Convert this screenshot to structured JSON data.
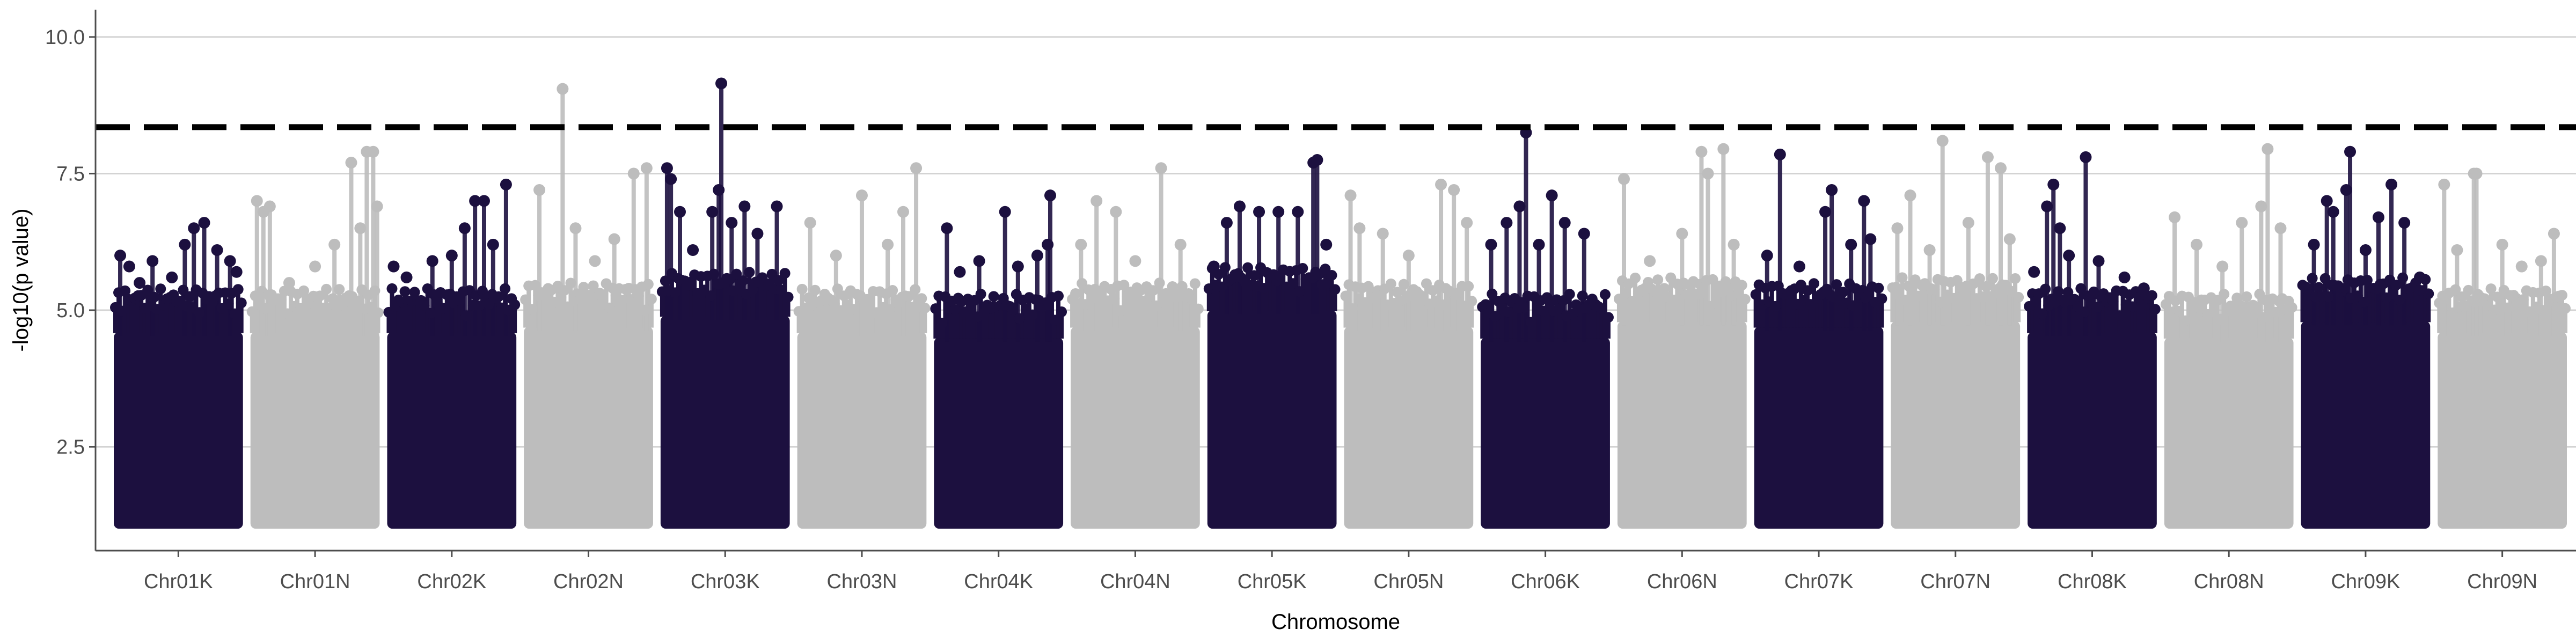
{
  "chart_data": {
    "type": "scatter",
    "title": "",
    "xlabel": "Chromosome",
    "ylabel": "-log10(p value)",
    "ylim": [
      0.6,
      10.5
    ],
    "yticks": [
      2.5,
      5.0,
      7.5,
      10.0
    ],
    "ytick_labels": [
      "2.5",
      "5.0",
      "7.5",
      "10.0"
    ],
    "grid": "horizontal major",
    "legend": "none",
    "threshold": 8.35,
    "threshold_style": "dashed",
    "colors": {
      "dark": "#1c103f",
      "light": "#bdbdbd",
      "threshold": "#000000",
      "grid": "#d3d3d3",
      "axis": "#4d4d4d"
    },
    "categories": [
      "Chr01K",
      "Chr01N",
      "Chr02K",
      "Chr02N",
      "Chr03K",
      "Chr03N",
      "Chr04K",
      "Chr04N",
      "Chr05K",
      "Chr05N",
      "Chr06K",
      "Chr06N",
      "Chr07K",
      "Chr07N",
      "Chr08K",
      "Chr08N",
      "Chr09K",
      "Chr09N"
    ],
    "series": [
      {
        "chromosome": "Chr01K",
        "color": "dark",
        "bulk_top": 4.6,
        "points": [
          [
            0.05,
            6.0
          ],
          [
            0.12,
            5.8
          ],
          [
            0.2,
            5.5
          ],
          [
            0.3,
            5.9
          ],
          [
            0.45,
            5.6
          ],
          [
            0.55,
            6.2
          ],
          [
            0.62,
            6.5
          ],
          [
            0.7,
            6.6
          ],
          [
            0.8,
            6.1
          ],
          [
            0.9,
            5.9
          ],
          [
            0.95,
            5.7
          ]
        ]
      },
      {
        "chromosome": "Chr01N",
        "color": "light",
        "bulk_top": 4.6,
        "points": [
          [
            0.05,
            7.0
          ],
          [
            0.1,
            6.8
          ],
          [
            0.15,
            6.9
          ],
          [
            0.3,
            5.5
          ],
          [
            0.5,
            5.8
          ],
          [
            0.65,
            6.2
          ],
          [
            0.78,
            7.7
          ],
          [
            0.85,
            6.5
          ],
          [
            0.9,
            7.9
          ],
          [
            0.95,
            7.9
          ],
          [
            0.98,
            6.9
          ]
        ]
      },
      {
        "chromosome": "Chr02K",
        "color": "dark",
        "bulk_top": 4.6,
        "points": [
          [
            0.05,
            5.8
          ],
          [
            0.15,
            5.6
          ],
          [
            0.35,
            5.9
          ],
          [
            0.5,
            6.0
          ],
          [
            0.6,
            6.5
          ],
          [
            0.68,
            7.0
          ],
          [
            0.75,
            7.0
          ],
          [
            0.82,
            6.2
          ],
          [
            0.92,
            7.3
          ]
        ]
      },
      {
        "chromosome": "Chr02N",
        "color": "light",
        "bulk_top": 4.7,
        "points": [
          [
            0.12,
            7.2
          ],
          [
            0.3,
            9.05
          ],
          [
            0.4,
            6.5
          ],
          [
            0.55,
            5.9
          ],
          [
            0.7,
            6.3
          ],
          [
            0.85,
            7.5
          ],
          [
            0.95,
            7.6
          ]
        ]
      },
      {
        "chromosome": "Chr03K",
        "color": "dark",
        "bulk_top": 4.9,
        "points": [
          [
            0.05,
            7.6
          ],
          [
            0.08,
            7.4
          ],
          [
            0.15,
            6.8
          ],
          [
            0.25,
            6.1
          ],
          [
            0.4,
            6.8
          ],
          [
            0.45,
            7.2
          ],
          [
            0.47,
            9.15
          ],
          [
            0.55,
            6.6
          ],
          [
            0.65,
            6.9
          ],
          [
            0.75,
            6.4
          ],
          [
            0.9,
            6.9
          ]
        ]
      },
      {
        "chromosome": "Chr03N",
        "color": "light",
        "bulk_top": 4.6,
        "points": [
          [
            0.1,
            6.6
          ],
          [
            0.3,
            6.0
          ],
          [
            0.5,
            7.1
          ],
          [
            0.7,
            6.2
          ],
          [
            0.82,
            6.8
          ],
          [
            0.92,
            7.6
          ]
        ]
      },
      {
        "chromosome": "Chr04K",
        "color": "dark",
        "bulk_top": 4.5,
        "points": [
          [
            0.1,
            6.5
          ],
          [
            0.2,
            5.7
          ],
          [
            0.35,
            5.9
          ],
          [
            0.55,
            6.8
          ],
          [
            0.65,
            5.8
          ],
          [
            0.8,
            6.0
          ],
          [
            0.88,
            6.2
          ],
          [
            0.9,
            7.1
          ]
        ]
      },
      {
        "chromosome": "Chr04N",
        "color": "light",
        "bulk_top": 4.7,
        "points": [
          [
            0.08,
            6.2
          ],
          [
            0.2,
            7.0
          ],
          [
            0.35,
            6.8
          ],
          [
            0.5,
            5.9
          ],
          [
            0.7,
            7.6
          ],
          [
            0.85,
            6.2
          ]
        ]
      },
      {
        "chromosome": "Chr05K",
        "color": "dark",
        "bulk_top": 5.0,
        "points": [
          [
            0.05,
            5.8
          ],
          [
            0.15,
            6.6
          ],
          [
            0.25,
            6.9
          ],
          [
            0.4,
            6.8
          ],
          [
            0.55,
            6.8
          ],
          [
            0.7,
            6.8
          ],
          [
            0.82,
            7.7
          ],
          [
            0.85,
            7.75
          ],
          [
            0.92,
            6.2
          ]
        ]
      },
      {
        "chromosome": "Chr05N",
        "color": "light",
        "bulk_top": 4.7,
        "points": [
          [
            0.05,
            7.1
          ],
          [
            0.12,
            6.5
          ],
          [
            0.3,
            6.4
          ],
          [
            0.5,
            6.0
          ],
          [
            0.75,
            7.3
          ],
          [
            0.85,
            7.2
          ],
          [
            0.95,
            6.6
          ]
        ]
      },
      {
        "chromosome": "Chr06K",
        "color": "dark",
        "bulk_top": 4.5,
        "points": [
          [
            0.08,
            6.2
          ],
          [
            0.2,
            6.6
          ],
          [
            0.3,
            6.9
          ],
          [
            0.35,
            8.25
          ],
          [
            0.45,
            6.2
          ],
          [
            0.55,
            7.1
          ],
          [
            0.65,
            6.6
          ],
          [
            0.8,
            6.4
          ]
        ]
      },
      {
        "chromosome": "Chr06N",
        "color": "light",
        "bulk_top": 4.8,
        "points": [
          [
            0.05,
            7.4
          ],
          [
            0.25,
            5.9
          ],
          [
            0.5,
            6.4
          ],
          [
            0.65,
            7.9
          ],
          [
            0.7,
            7.5
          ],
          [
            0.82,
            7.95
          ],
          [
            0.9,
            6.2
          ]
        ]
      },
      {
        "chromosome": "Chr07K",
        "color": "dark",
        "bulk_top": 4.7,
        "points": [
          [
            0.1,
            6.0
          ],
          [
            0.2,
            7.85
          ],
          [
            0.35,
            5.8
          ],
          [
            0.55,
            6.8
          ],
          [
            0.6,
            7.2
          ],
          [
            0.75,
            6.2
          ],
          [
            0.85,
            7.0
          ],
          [
            0.9,
            6.3
          ]
        ]
      },
      {
        "chromosome": "Chr07N",
        "color": "light",
        "bulk_top": 4.8,
        "points": [
          [
            0.05,
            6.5
          ],
          [
            0.15,
            7.1
          ],
          [
            0.3,
            6.1
          ],
          [
            0.4,
            8.1
          ],
          [
            0.6,
            6.6
          ],
          [
            0.75,
            7.8
          ],
          [
            0.85,
            7.6
          ],
          [
            0.92,
            6.3
          ]
        ]
      },
      {
        "chromosome": "Chr08K",
        "color": "dark",
        "bulk_top": 4.6,
        "points": [
          [
            0.05,
            5.7
          ],
          [
            0.15,
            6.9
          ],
          [
            0.2,
            7.3
          ],
          [
            0.25,
            6.5
          ],
          [
            0.32,
            6.0
          ],
          [
            0.45,
            7.8
          ],
          [
            0.55,
            5.9
          ],
          [
            0.75,
            5.6
          ],
          [
            0.9,
            5.4
          ]
        ]
      },
      {
        "chromosome": "Chr08N",
        "color": "light",
        "bulk_top": 4.5,
        "points": [
          [
            0.08,
            6.7
          ],
          [
            0.25,
            6.2
          ],
          [
            0.45,
            5.8
          ],
          [
            0.6,
            6.6
          ],
          [
            0.75,
            6.9
          ],
          [
            0.8,
            7.95
          ],
          [
            0.9,
            6.5
          ]
        ]
      },
      {
        "chromosome": "Chr09K",
        "color": "dark",
        "bulk_top": 4.8,
        "points": [
          [
            0.1,
            6.2
          ],
          [
            0.2,
            7.0
          ],
          [
            0.25,
            6.8
          ],
          [
            0.35,
            7.2
          ],
          [
            0.38,
            7.9
          ],
          [
            0.5,
            6.1
          ],
          [
            0.6,
            6.7
          ],
          [
            0.7,
            7.3
          ],
          [
            0.8,
            6.6
          ],
          [
            0.92,
            5.6
          ]
        ]
      },
      {
        "chromosome": "Chr09N",
        "color": "light",
        "bulk_top": 4.6,
        "points": [
          [
            0.05,
            7.3
          ],
          [
            0.15,
            6.1
          ],
          [
            0.28,
            7.5
          ],
          [
            0.3,
            7.5
          ],
          [
            0.5,
            6.2
          ],
          [
            0.65,
            5.8
          ],
          [
            0.8,
            5.9
          ],
          [
            0.9,
            6.4
          ]
        ]
      }
    ]
  }
}
